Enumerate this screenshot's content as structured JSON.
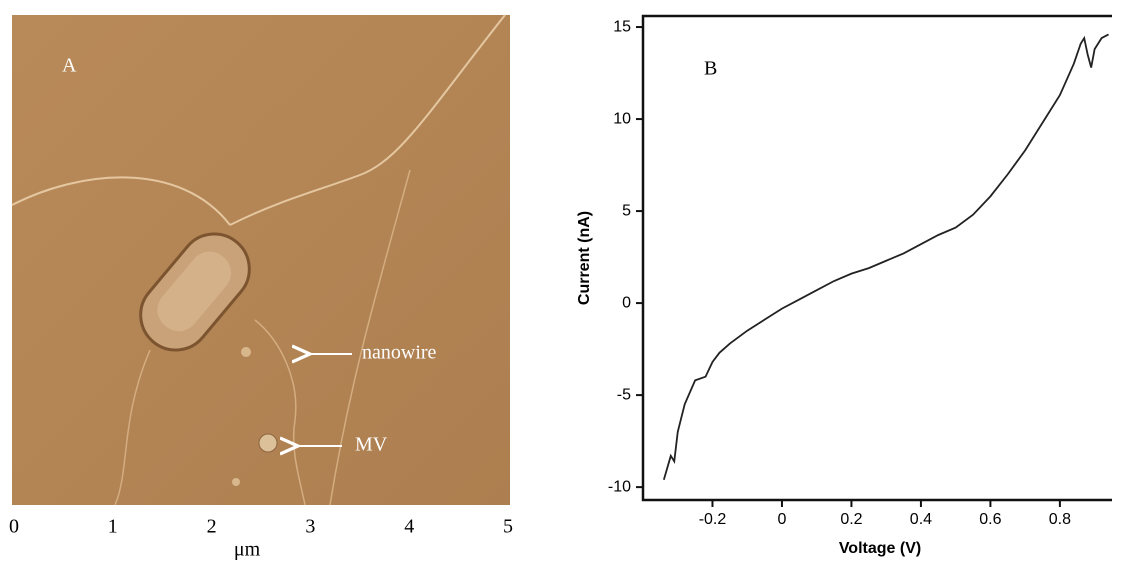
{
  "chart_data": [
    {
      "type": "image",
      "label": "A",
      "xlabel": "μm",
      "xlim": [
        0,
        5
      ],
      "xticks": [
        0,
        1,
        2,
        3,
        4,
        5
      ],
      "annotations": [
        "nanowire",
        "MV"
      ]
    },
    {
      "type": "line",
      "label": "B",
      "xlabel": "Voltage (V)",
      "ylabel": "Current (nA)",
      "color": "#222222",
      "x": [
        -0.34,
        -0.32,
        -0.31,
        -0.3,
        -0.28,
        -0.25,
        -0.22,
        -0.2,
        -0.18,
        -0.15,
        -0.1,
        -0.05,
        0,
        0.05,
        0.1,
        0.15,
        0.2,
        0.25,
        0.3,
        0.35,
        0.4,
        0.45,
        0.5,
        0.55,
        0.6,
        0.65,
        0.7,
        0.75,
        0.8,
        0.84,
        0.86,
        0.87,
        0.88,
        0.89,
        0.9,
        0.92,
        0.94
      ],
      "values": [
        -9.6,
        -8.3,
        -8.6,
        -7,
        -5.5,
        -4.2,
        -4.0,
        -3.2,
        -2.7,
        -2.2,
        -1.5,
        -0.9,
        -0.3,
        0.2,
        0.7,
        1.2,
        1.6,
        1.9,
        2.3,
        2.7,
        3.2,
        3.7,
        4.1,
        4.8,
        5.8,
        7.0,
        8.3,
        9.8,
        11.3,
        13,
        14.1,
        14.4,
        13.5,
        12.8,
        13.8,
        14.4,
        14.6
      ],
      "xlim": [
        -0.4,
        0.95
      ],
      "ylim": [
        -10.7,
        15.6
      ],
      "xticks": [
        -0.2,
        0,
        0.2,
        0.4,
        0.6,
        0.8
      ],
      "yticks": [
        -10,
        -5,
        0,
        5,
        10,
        15
      ]
    }
  ]
}
